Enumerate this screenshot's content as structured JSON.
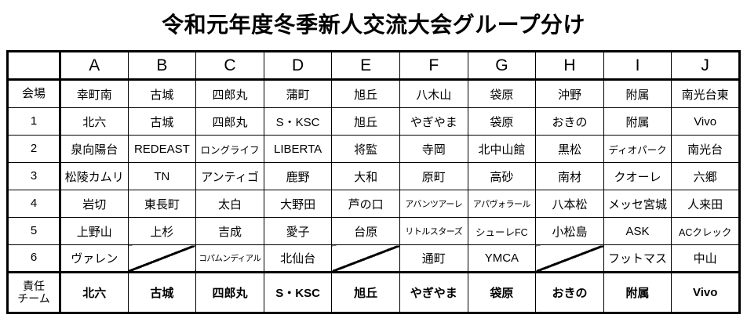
{
  "title": "令和元年度冬季新人交流大会グループ分け",
  "table": {
    "corner_label": "",
    "group_headers": [
      "A",
      "B",
      "C",
      "D",
      "E",
      "F",
      "G",
      "H",
      "I",
      "J"
    ],
    "rows": [
      {
        "label": "会場",
        "bold": false,
        "cells": [
          "幸町南",
          "古城",
          "四郎丸",
          "蒲町",
          "旭丘",
          "八木山",
          "袋原",
          "沖野",
          "附属",
          "南光台東"
        ]
      },
      {
        "label": "1",
        "bold": false,
        "cells": [
          "北六",
          "古城",
          "四郎丸",
          "S・KSC",
          "旭丘",
          "やぎやま",
          "袋原",
          "おきの",
          "附属",
          "Vivo"
        ]
      },
      {
        "label": "2",
        "bold": false,
        "cells": [
          "泉向陽台",
          "REDEAST",
          "ロングライフ",
          "LIBERTA",
          "将監",
          "寺岡",
          "北中山館",
          "黒松",
          "ディオパーク",
          "南光台"
        ]
      },
      {
        "label": "3",
        "bold": false,
        "cells": [
          "松陵カムリ",
          "TN",
          "アンティゴ",
          "鹿野",
          "大和",
          "原町",
          "高砂",
          "南材",
          "クオーレ",
          "六郷"
        ]
      },
      {
        "label": "4",
        "bold": false,
        "cells": [
          "岩切",
          "東長町",
          "太白",
          "大野田",
          "芦の口",
          "アバンツアーレ",
          "アパヴォラール",
          "八本松",
          "メッセ宮城",
          "人来田"
        ]
      },
      {
        "label": "5",
        "bold": false,
        "cells": [
          "上野山",
          "上杉",
          "吉成",
          "愛子",
          "台原",
          "リトルスターズ",
          "シューレFC",
          "小松島",
          "ASK",
          "ACクレック"
        ]
      },
      {
        "label": "6",
        "bold": false,
        "cells": [
          "ヴァレン",
          null,
          "コパムンディアル",
          "北仙台",
          null,
          "通町",
          "YMCA",
          null,
          "フットマス",
          "中山"
        ]
      },
      {
        "label": "責任\nチーム",
        "bold": true,
        "cells": [
          "北六",
          "古城",
          "四郎丸",
          "S・KSC",
          "旭丘",
          "やぎやま",
          "袋原",
          "おきの",
          "附属",
          "Vivo"
        ]
      }
    ]
  },
  "colors": {
    "background": "#ffffff",
    "text": "#000000",
    "border": "#000000"
  }
}
